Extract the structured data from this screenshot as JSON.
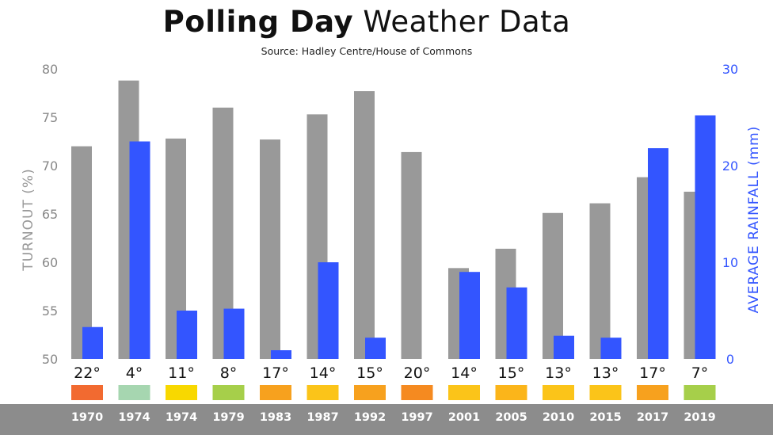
{
  "title": {
    "bold_part": "Polling Day",
    "light_part": "Weather Data"
  },
  "subtitle": "Source: Hadley Centre/House of Commons",
  "colors": {
    "turnout_bar": "#999999",
    "rainfall_bar": "#3355ff",
    "left_axis_text": "#888888",
    "right_axis_text": "#3355ff",
    "footer_bar": "#8c8c8c"
  },
  "chart_data": {
    "type": "bar",
    "categories": [
      "1970",
      "1974",
      "1974",
      "1979",
      "1983",
      "1987",
      "1992",
      "1997",
      "2001",
      "2005",
      "2010",
      "2015",
      "2017",
      "2019"
    ],
    "series": [
      {
        "name": "TURNOUT (%)",
        "axis": "left",
        "values": [
          72.0,
          78.8,
          72.8,
          76.0,
          72.7,
          75.3,
          77.7,
          71.4,
          59.4,
          61.4,
          65.1,
          66.1,
          68.8,
          67.3
        ]
      },
      {
        "name": "AVERAGE RAINFALL (mm)",
        "axis": "right",
        "values": [
          3.3,
          22.5,
          5.0,
          5.2,
          0.9,
          10.0,
          2.2,
          0,
          9.0,
          7.4,
          2.4,
          2.2,
          21.8,
          25.2
        ]
      }
    ],
    "ylabel": "TURNOUT (%)",
    "ylim": [
      50,
      80
    ],
    "yticks": [
      "50",
      "55",
      "60",
      "65",
      "70",
      "75",
      "80"
    ],
    "y2label": "AVERAGE RAINFALL (mm)",
    "y2lim": [
      0,
      30
    ],
    "y2ticks": [
      "0",
      "10",
      "20",
      "30"
    ],
    "temperatures": [
      "22°",
      "4°",
      "11°",
      "8°",
      "17°",
      "14°",
      "15°",
      "20°",
      "14°",
      "15°",
      "13°",
      "13°",
      "17°",
      "7°"
    ],
    "temperature_colors": [
      "#f26a30",
      "#a6d6b0",
      "#f8d800",
      "#a6cf4a",
      "#f7a11e",
      "#fbc419",
      "#f7a11e",
      "#f58a20",
      "#fbc419",
      "#fbb51a",
      "#fbc419",
      "#fbc419",
      "#f7a11e",
      "#a6cf4a"
    ],
    "legend": "none",
    "grid": false
  }
}
